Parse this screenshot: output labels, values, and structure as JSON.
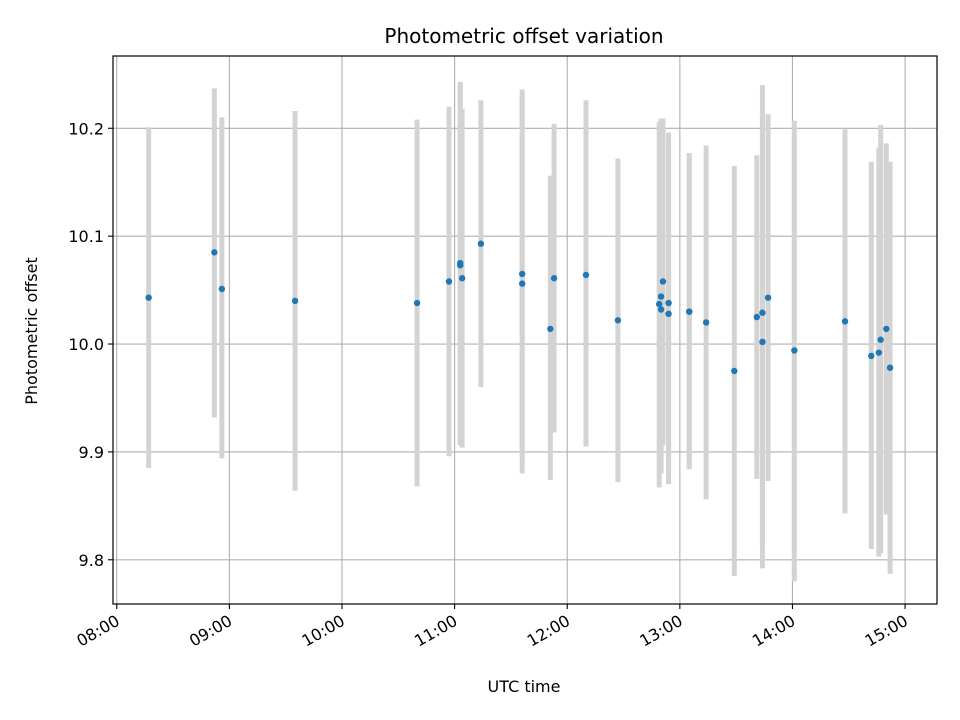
{
  "chart_data": {
    "type": "scatter",
    "title": "Photometric offset variation",
    "xlabel": "UTC time",
    "ylabel": "Photometric offset",
    "xlim": [
      "07:58",
      "15:17"
    ],
    "ylim": [
      9.759,
      10.267
    ],
    "x_ticks": [
      "08:00",
      "09:00",
      "10:00",
      "11:00",
      "12:00",
      "13:00",
      "14:00",
      "15:00"
    ],
    "y_ticks": [
      9.8,
      9.9,
      10.0,
      10.1,
      10.2
    ],
    "y_tick_labels": [
      "9.8",
      "9.9",
      "10.0",
      "10.1",
      "10.2"
    ],
    "grid": true,
    "legend": "none",
    "colors": {
      "points": "#1f77b4",
      "errorbars": "#d3d3d3",
      "grid": "#b0b0b0"
    },
    "series": [
      {
        "points": [
          {
            "x": "08:17",
            "y": 10.043,
            "ylow": 9.885,
            "yhigh": 10.201
          },
          {
            "x": "08:52",
            "y": 10.085,
            "ylow": 9.932,
            "yhigh": 10.237
          },
          {
            "x": "08:56",
            "y": 10.051,
            "ylow": 9.894,
            "yhigh": 10.21
          },
          {
            "x": "09:35",
            "y": 10.04,
            "ylow": 9.864,
            "yhigh": 10.216
          },
          {
            "x": "10:40",
            "y": 10.038,
            "ylow": 9.868,
            "yhigh": 10.208
          },
          {
            "x": "10:57",
            "y": 10.058,
            "ylow": 9.896,
            "yhigh": 10.22
          },
          {
            "x": "11:03",
            "y": 10.075,
            "ylow": 9.906,
            "yhigh": 10.243
          },
          {
            "x": "11:03",
            "y": 10.073,
            "ylow": 9.907,
            "yhigh": 10.239
          },
          {
            "x": "11:04",
            "y": 10.061,
            "ylow": 9.904,
            "yhigh": 10.218
          },
          {
            "x": "11:14",
            "y": 10.093,
            "ylow": 9.96,
            "yhigh": 10.226
          },
          {
            "x": "11:36",
            "y": 10.065,
            "ylow": 9.894,
            "yhigh": 10.236
          },
          {
            "x": "11:36",
            "y": 10.056,
            "ylow": 9.88,
            "yhigh": 10.231
          },
          {
            "x": "11:51",
            "y": 10.014,
            "ylow": 9.874,
            "yhigh": 10.156
          },
          {
            "x": "11:53",
            "y": 10.061,
            "ylow": 9.918,
            "yhigh": 10.204
          },
          {
            "x": "12:10",
            "y": 10.064,
            "ylow": 9.905,
            "yhigh": 10.226
          },
          {
            "x": "12:27",
            "y": 10.022,
            "ylow": 9.872,
            "yhigh": 10.172
          },
          {
            "x": "12:49",
            "y": 10.037,
            "ylow": 9.867,
            "yhigh": 10.206
          },
          {
            "x": "12:50",
            "y": 10.044,
            "ylow": 9.88,
            "yhigh": 10.209
          },
          {
            "x": "12:50",
            "y": 10.032,
            "ylow": 9.885,
            "yhigh": 10.181
          },
          {
            "x": "12:51",
            "y": 10.058,
            "ylow": 9.906,
            "yhigh": 10.209
          },
          {
            "x": "12:54",
            "y": 10.038,
            "ylow": 9.88,
            "yhigh": 10.196
          },
          {
            "x": "12:54",
            "y": 10.028,
            "ylow": 9.87,
            "yhigh": 10.186
          },
          {
            "x": "13:05",
            "y": 10.03,
            "ylow": 9.884,
            "yhigh": 10.177
          },
          {
            "x": "13:05",
            "y": 10.03,
            "ylow": 9.884,
            "yhigh": 10.177
          },
          {
            "x": "13:14",
            "y": 10.02,
            "ylow": 9.856,
            "yhigh": 10.184
          },
          {
            "x": "13:29",
            "y": 9.975,
            "ylow": 9.785,
            "yhigh": 10.165
          },
          {
            "x": "13:41",
            "y": 10.025,
            "ylow": 9.875,
            "yhigh": 10.175
          },
          {
            "x": "13:44",
            "y": 10.002,
            "ylow": 9.82,
            "yhigh": 10.24
          },
          {
            "x": "13:44",
            "y": 10.029,
            "ylow": 9.792,
            "yhigh": 10.213
          },
          {
            "x": "13:47",
            "y": 10.043,
            "ylow": 9.873,
            "yhigh": 10.213
          },
          {
            "x": "14:01",
            "y": 9.994,
            "ylow": 9.78,
            "yhigh": 10.207
          },
          {
            "x": "14:28",
            "y": 10.021,
            "ylow": 9.843,
            "yhigh": 10.199
          },
          {
            "x": "14:42",
            "y": 9.989,
            "ylow": 9.81,
            "yhigh": 10.169
          },
          {
            "x": "14:46",
            "y": 9.992,
            "ylow": 9.803,
            "yhigh": 10.182
          },
          {
            "x": "14:47",
            "y": 10.004,
            "ylow": 9.806,
            "yhigh": 10.203
          },
          {
            "x": "14:50",
            "y": 10.014,
            "ylow": 9.842,
            "yhigh": 10.186
          },
          {
            "x": "14:52",
            "y": 9.978,
            "ylow": 9.787,
            "yhigh": 10.169
          }
        ]
      }
    ]
  }
}
